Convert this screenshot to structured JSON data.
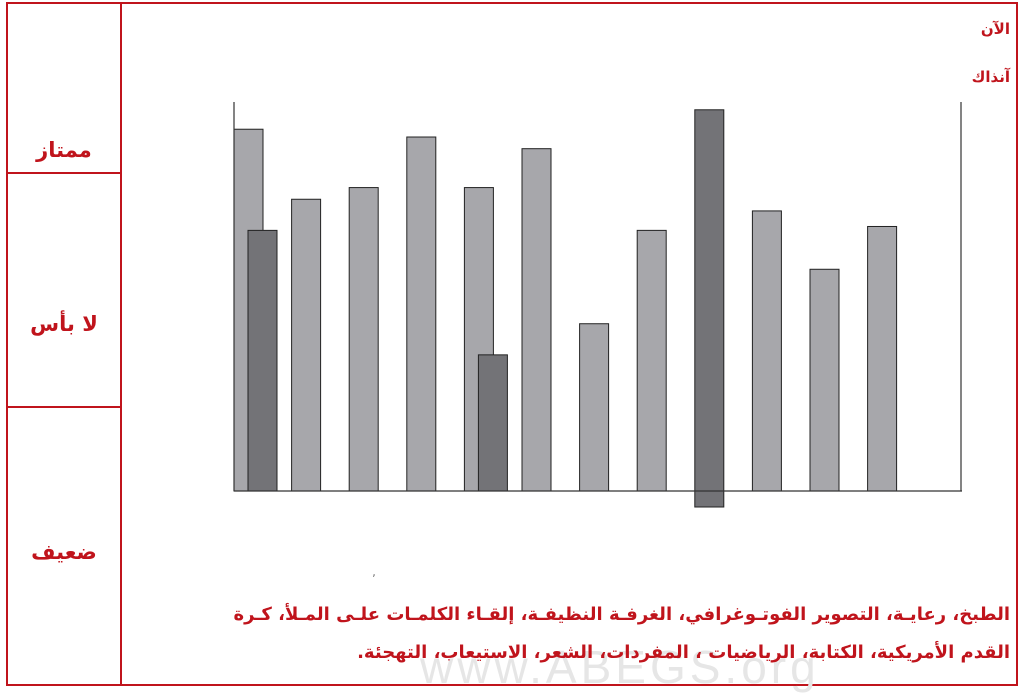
{
  "legend": {
    "now": "الآن",
    "then": "آنذاك"
  },
  "levels": {
    "excellent": "ممتاز",
    "okay": "لا بأس",
    "weak": "ضعيف"
  },
  "caption": {
    "line1": "الطبخ، رعايـة، التصوير الفوتـوغرافي، الغرفـة النظيفـة، إلقـاء الكلمـات علـى المـلأ، كـرة",
    "line2": "القدم الأمريكية، الكتابة، الرياضيات ، المفردات، الشعر، الاستيعاب، التهجئة."
  },
  "watermark": "www.ABEGS.org",
  "mark": "٬",
  "colors": {
    "accent": "#c0141c",
    "then_bar": "#a7a7ab",
    "now_bar": "#737377",
    "axis": "#333333"
  },
  "chart_data": {
    "type": "bar",
    "categories": [
      "الطبخ",
      "رعاية",
      "التصوير الفوتوغرافي",
      "الغرفة النظيفة",
      "إلقاء الكلمات على الملأ",
      "كرة القدم الأمريكية",
      "الكتابة",
      "الرياضيات",
      "المفردات",
      "الشعر",
      "الاستيعاب",
      "التهجئة"
    ],
    "ylim": [
      0,
      100
    ],
    "series": [
      {
        "name": "آنذاك",
        "values": [
          93,
          75,
          78,
          91,
          78,
          88,
          43,
          67,
          0,
          72,
          57,
          68
        ],
        "color": "#a7a7ab"
      },
      {
        "name": "الآن",
        "values": [
          67,
          null,
          null,
          null,
          35,
          null,
          null,
          null,
          98,
          null,
          null,
          null
        ],
        "color": "#737377"
      }
    ],
    "note_now_bar_index_8_extends_below_axis": -4
  }
}
